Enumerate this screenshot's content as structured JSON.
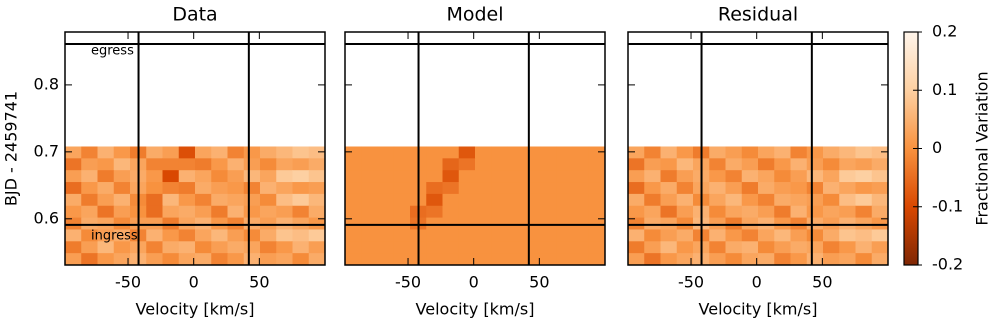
{
  "chart_data": [
    {
      "type": "heatmap",
      "title": "Data",
      "xlabel": "Velocity [km/s]",
      "ylabel": "BJD - 2459741",
      "xlim": [
        -98,
        100
      ],
      "ylim": [
        0.531,
        0.879
      ],
      "xticks": [
        -50,
        0,
        50
      ],
      "yticks": [
        0.6,
        0.7,
        0.8
      ],
      "extent": [
        -98,
        100,
        0.531,
        0.708
      ],
      "vlines": [
        -42,
        42
      ],
      "hlines": [
        0.861,
        0.591
      ],
      "hline_labels": [
        "egress",
        "ingress"
      ],
      "z": [
        [
          0.03,
          -0.02,
          0.05,
          0.01,
          -0.03,
          0.04,
          0.02,
          -0.09,
          0.03,
          0.05,
          -0.02,
          0.01,
          0.04,
          0.06,
          0.08,
          0.07
        ],
        [
          -0.04,
          0.02,
          0.01,
          0.06,
          0.03,
          -0.02,
          -0.02,
          -0.02,
          -0.03,
          0.01,
          0.05,
          0.02,
          -0.01,
          0.03,
          0.02,
          0.04
        ],
        [
          0.02,
          0.05,
          -0.03,
          0.02,
          0.04,
          0.01,
          -0.1,
          0.05,
          0.03,
          -0.01,
          0.02,
          0.06,
          0.03,
          0.09,
          0.1,
          0.08
        ],
        [
          -0.05,
          0.01,
          0.04,
          -0.02,
          0.03,
          0,
          -0.02,
          -0.03,
          0.04,
          0.02,
          0.01,
          -0.02,
          0.05,
          0.03,
          0.01,
          0.02
        ],
        [
          0.04,
          -0.03,
          0.02,
          0.05,
          -0.01,
          -0.05,
          0.06,
          0.01,
          -0.02,
          0.04,
          0.03,
          0.02,
          -0.01,
          0.07,
          0.09,
          0.06
        ],
        [
          0.01,
          0.03,
          -0.04,
          0.02,
          0,
          -0.05,
          0.03,
          0.04,
          0.02,
          -0.03,
          0.05,
          0.01,
          0.03,
          0.02,
          -0.02,
          0.04
        ],
        [
          -0.02,
          0.04,
          0.03,
          -0.01,
          0.02,
          0.02,
          -0.03,
          0.03,
          0.05,
          0.01,
          -0.02,
          0.04,
          0.02,
          0.05,
          0.03,
          0.01
        ],
        [
          0.05,
          -0.01,
          0.02,
          0.04,
          -0.02,
          0.05,
          0.01,
          -0.02,
          0.03,
          0.06,
          0.02,
          -0.01,
          0.04,
          0.08,
          0.07,
          0.09
        ],
        [
          -0.03,
          0.02,
          0.06,
          0.01,
          0.03,
          -0.02,
          0.04,
          0.05,
          -0.01,
          0.02,
          0.04,
          0.03,
          -0.02,
          0.01,
          0.05,
          0.02
        ],
        [
          0.02,
          -0.04,
          0.01,
          0.03,
          0.05,
          0.02,
          -0.01,
          0.03,
          0.04,
          -0.02,
          0.01,
          0.05,
          0.02,
          0.03,
          -0.01,
          0.04
        ]
      ]
    },
    {
      "type": "heatmap",
      "title": "Model",
      "xlabel": "Velocity [km/s]",
      "xlim": [
        -98,
        100
      ],
      "ylim": [
        0.531,
        0.879
      ],
      "xticks": [
        -50,
        0,
        50
      ],
      "yticks": [
        0.6,
        0.7,
        0.8
      ],
      "extent": [
        -98,
        100,
        0.531,
        0.708
      ],
      "vlines": [
        -42,
        42
      ],
      "hlines": [
        0.861,
        0.591
      ],
      "z": [
        [
          0,
          0,
          0,
          0,
          0,
          0,
          0,
          -0.08,
          0,
          0,
          0,
          0,
          0,
          0,
          0,
          0
        ],
        [
          0,
          0,
          0,
          0,
          0,
          0,
          -0.06,
          -0.04,
          0,
          0,
          0,
          0,
          0,
          0,
          0,
          0
        ],
        [
          0,
          0,
          0,
          0,
          0,
          0,
          -0.08,
          0,
          0,
          0,
          0,
          0,
          0,
          0,
          0,
          0
        ],
        [
          0,
          0,
          0,
          0,
          0,
          -0.05,
          -0.04,
          0,
          0,
          0,
          0,
          0,
          0,
          0,
          0,
          0
        ],
        [
          0,
          0,
          0,
          0,
          0,
          -0.08,
          0,
          0,
          0,
          0,
          0,
          0,
          0,
          0,
          0,
          0
        ],
        [
          0,
          0,
          0,
          0,
          -0.05,
          -0.04,
          0,
          0,
          0,
          0,
          0,
          0,
          0,
          0,
          0,
          0
        ],
        [
          0,
          0,
          0,
          0,
          -0.04,
          0,
          0,
          0,
          0,
          0,
          0,
          0,
          0,
          0,
          0,
          0
        ],
        [
          0,
          0,
          0,
          0,
          0,
          0,
          0,
          0,
          0,
          0,
          0,
          0,
          0,
          0,
          0,
          0
        ],
        [
          0,
          0,
          0,
          0,
          0,
          0,
          0,
          0,
          0,
          0,
          0,
          0,
          0,
          0,
          0,
          0
        ],
        [
          0,
          0,
          0,
          0,
          0,
          0,
          0,
          0,
          0,
          0,
          0,
          0,
          0,
          0,
          0,
          0
        ]
      ]
    },
    {
      "type": "heatmap",
      "title": "Residual",
      "xlabel": "Velocity [km/s]",
      "xlim": [
        -98,
        100
      ],
      "ylim": [
        0.531,
        0.879
      ],
      "xticks": [
        -50,
        0,
        50
      ],
      "yticks": [
        0.6,
        0.7,
        0.8
      ],
      "extent": [
        -98,
        100,
        0.531,
        0.708
      ],
      "vlines": [
        -42,
        42
      ],
      "hlines": [
        0.861,
        0.591
      ],
      "z": [
        [
          0.03,
          -0.02,
          0.05,
          0.01,
          -0.03,
          0.04,
          0.02,
          -0.01,
          0.03,
          0.05,
          -0.02,
          0.01,
          0.04,
          0.06,
          0.08,
          0.07
        ],
        [
          -0.04,
          0.02,
          0.01,
          0.06,
          0.03,
          -0.02,
          0.04,
          0.02,
          -0.03,
          0.01,
          0.05,
          0.02,
          -0.01,
          0.03,
          0.02,
          0.04
        ],
        [
          0.02,
          0.05,
          -0.03,
          0.02,
          0.04,
          0.01,
          -0.02,
          0.05,
          0.03,
          -0.01,
          0.02,
          0.06,
          0.03,
          0.09,
          0.1,
          0.08
        ],
        [
          -0.05,
          0.01,
          0.04,
          -0.02,
          0.03,
          0.05,
          0.02,
          -0.03,
          0.04,
          0.02,
          0.01,
          -0.02,
          0.05,
          0.03,
          0.01,
          0.02
        ],
        [
          0.04,
          -0.03,
          0.02,
          0.05,
          -0.01,
          0.03,
          0.06,
          0.01,
          -0.02,
          0.04,
          0.03,
          0.02,
          -0.01,
          0.07,
          0.09,
          0.06
        ],
        [
          0.01,
          0.03,
          -0.04,
          0.02,
          0.05,
          -0.01,
          0.03,
          0.04,
          0.02,
          -0.03,
          0.05,
          0.01,
          0.03,
          0.02,
          -0.02,
          0.04
        ],
        [
          -0.02,
          0.04,
          0.03,
          -0.01,
          0.06,
          0.02,
          -0.03,
          0.03,
          0.05,
          0.01,
          -0.02,
          0.04,
          0.02,
          0.05,
          0.03,
          0.01
        ],
        [
          0.05,
          -0.01,
          0.02,
          0.04,
          -0.02,
          0.05,
          0.01,
          -0.02,
          0.03,
          0.06,
          0.02,
          -0.01,
          0.04,
          0.08,
          0.07,
          0.09
        ],
        [
          -0.03,
          0.02,
          0.06,
          0.01,
          0.03,
          -0.02,
          0.04,
          0.05,
          -0.01,
          0.02,
          0.04,
          0.03,
          -0.02,
          0.01,
          0.05,
          0.02
        ],
        [
          0.02,
          -0.04,
          0.01,
          0.03,
          0.05,
          0.02,
          -0.01,
          0.03,
          0.04,
          -0.02,
          0.01,
          0.05,
          0.02,
          0.03,
          -0.01,
          0.04
        ]
      ]
    }
  ],
  "colorbar": {
    "label": "Fractional Variation",
    "lim": [
      -0.2,
      0.2
    ],
    "ticks": [
      -0.2,
      -0.1,
      0,
      0.1,
      0.2
    ],
    "colormap": [
      "#7f2704",
      "#d94801",
      "#f8923f",
      "#fdd0a2",
      "#fff5eb"
    ]
  }
}
